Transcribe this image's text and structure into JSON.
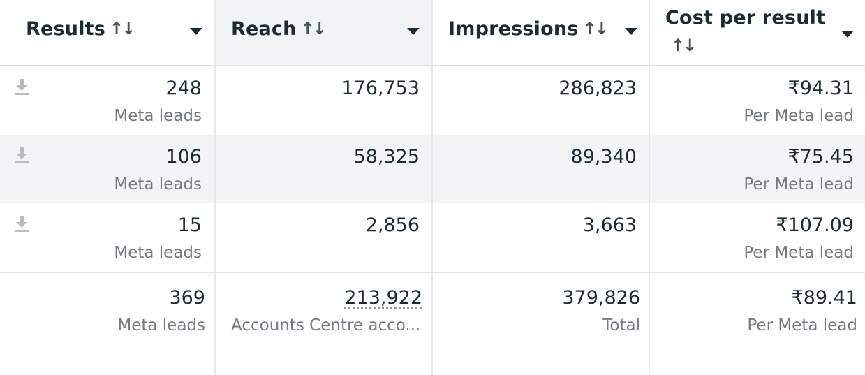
{
  "columns": [
    {
      "label": "Results",
      "sort_icon": "↑↓",
      "caret": "dropdown-caret"
    },
    {
      "label": "Reach",
      "sort_icon": "↑↓",
      "caret": "dropdown-caret"
    },
    {
      "label": "Impressions",
      "sort_icon": "↑↓",
      "caret": "dropdown-caret"
    },
    {
      "label": "Cost per result",
      "sort_icon": "↑↓",
      "caret": "dropdown-caret"
    }
  ],
  "rows": [
    {
      "results": "248",
      "results_sub": "Meta leads",
      "reach": "176,753",
      "impressions": "286,823",
      "cost": "₹94.31",
      "cost_sub": "Per Meta lead"
    },
    {
      "results": "106",
      "results_sub": "Meta leads",
      "reach": "58,325",
      "impressions": "89,340",
      "cost": "₹75.45",
      "cost_sub": "Per Meta lead"
    },
    {
      "results": "15",
      "results_sub": "Meta leads",
      "reach": "2,856",
      "impressions": "3,663",
      "cost": "₹107.09",
      "cost_sub": "Per Meta lead"
    }
  ],
  "totals": {
    "results": "369",
    "results_sub": "Meta leads",
    "reach": "213,922",
    "reach_sub": "Accounts Centre acco...",
    "impressions": "379,826",
    "impressions_sub": "Total",
    "cost": "₹89.41",
    "cost_sub": "Per Meta lead"
  },
  "colors": {
    "text": "#1c2b33",
    "subtext": "#747b80",
    "border": "#e6e8ea",
    "row_shade": "#f3f4f6",
    "active_header": "#f1f3f5",
    "icon": "#b8bcc0"
  },
  "icons": {
    "download": "download-icon",
    "sort": "sort-arrows-icon",
    "caret": "chevron-down-icon"
  }
}
